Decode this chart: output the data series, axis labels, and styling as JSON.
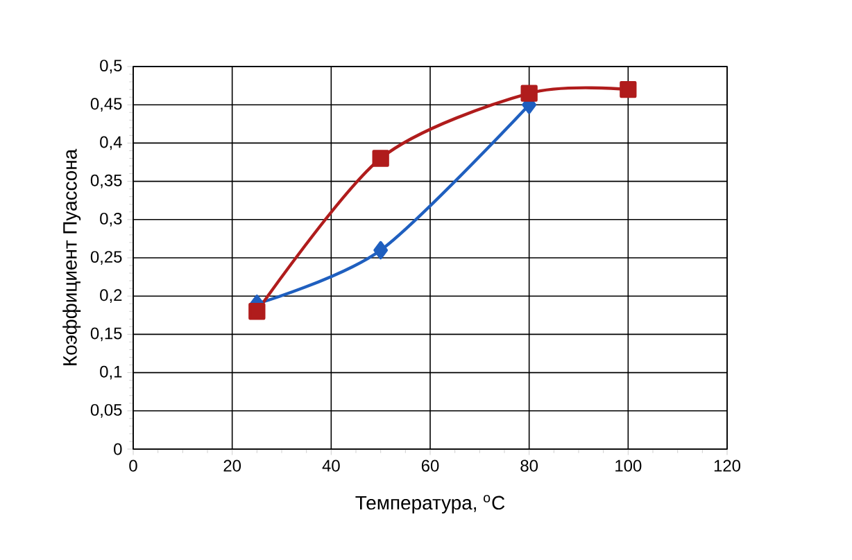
{
  "chart_data": {
    "type": "line",
    "xlabel": "Температура, $^{o}$C",
    "ylabel": "Коэффициент Пуассона",
    "x": [
      25,
      50,
      80,
      100
    ],
    "series": [
      {
        "color": "#1f5fbf",
        "marker": "diamond",
        "values": [
          0.19,
          0.26,
          0.45,
          null
        ]
      },
      {
        "color": "#b01c1c",
        "marker": "square",
        "values": [
          0.18,
          0.38,
          0.465,
          0.47
        ]
      }
    ],
    "xlim": [
      0,
      120
    ],
    "xticks": [
      0,
      20,
      40,
      60,
      80,
      100,
      120
    ],
    "ylim": [
      0,
      0.5
    ],
    "yticks": [
      {
        "value": 0,
        "label": "0"
      },
      {
        "value": 0.05,
        "label": "0,05"
      },
      {
        "value": 0.1,
        "label": "0,1"
      },
      {
        "value": 0.15,
        "label": "0,15"
      },
      {
        "value": 0.2,
        "label": "0,2"
      },
      {
        "value": 0.25,
        "label": "0,25"
      },
      {
        "value": 0.3,
        "label": "0,3"
      },
      {
        "value": 0.35,
        "label": "0,35"
      },
      {
        "value": 0.4,
        "label": "0,4"
      },
      {
        "value": 0.45,
        "label": "0,45"
      },
      {
        "value": 0.5,
        "label": "0,5"
      }
    ],
    "grid": true,
    "line_style": "solid"
  }
}
